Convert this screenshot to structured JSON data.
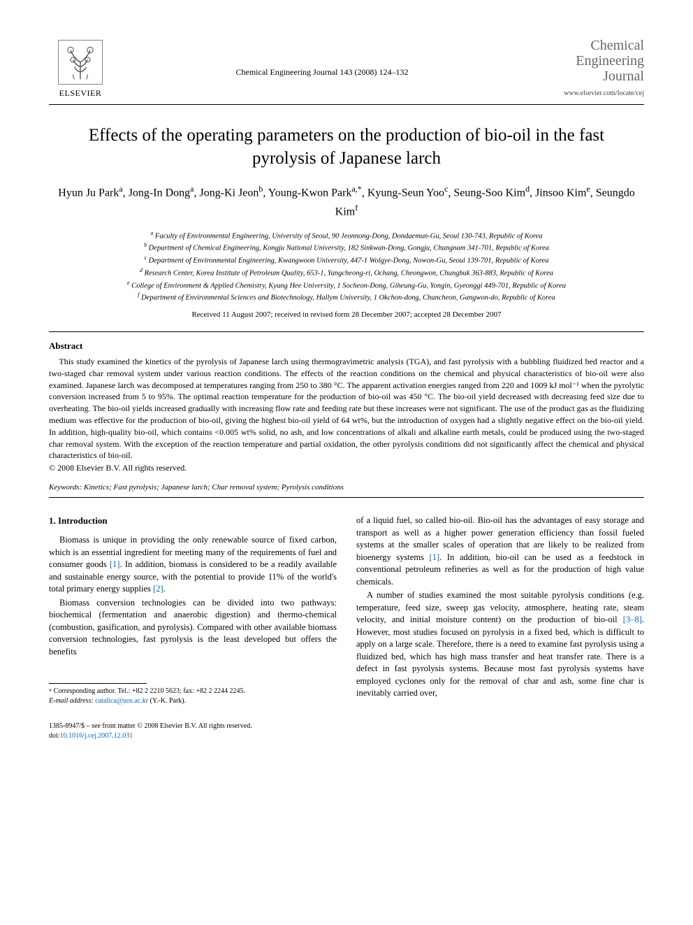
{
  "header": {
    "publisher_name": "ELSEVIER",
    "journal_ref": "Chemical Engineering Journal 143 (2008) 124–132",
    "journal_brand_line1": "Chemical",
    "journal_brand_line2": "Engineering",
    "journal_brand_line3": "Journal",
    "journal_url": "www.elsevier.com/locate/cej"
  },
  "title": "Effects of the operating parameters on the production of bio-oil in the fast pyrolysis of Japanese larch",
  "authors_html": "Hyun Ju Park<sup>a</sup>, Jong-In Dong<sup>a</sup>, Jong-Ki Jeon<sup>b</sup>, Young-Kwon Park<sup>a,*</sup>, Kyung-Seun Yoo<sup>c</sup>, Seung-Soo Kim<sup>d</sup>, Jinsoo Kim<sup>e</sup>, Seungdo Kim<sup>f</sup>",
  "affiliations": {
    "a": "Faculty of Environmental Engineering, University of Seoul, 90 Jeonnong-Dong, Dondaemun-Gu, Seoul 130-743, Republic of Korea",
    "b": "Department of Chemical Engineering, Kongju National University, 182 Sinkwan-Dong, Gongju, Chungnam 341-701, Republic of Korea",
    "c": "Department of Environmental Engineering, Kwangwoon University, 447-1 Wolgye-Dong, Nowon-Gu, Seoul 139-701, Republic of Korea",
    "d": "Research Center, Korea Institute of Petroleum Quality, 653-1, Yangcheong-ri, Ochang, Cheongwon, Chungbuk 363-883, Republic of Korea",
    "e": "College of Environment & Applied Chemistry, Kyung Hee University, 1 Socheon-Dong, Giheung-Gu, Yongin, Gyeonggi 449-701, Republic of Korea",
    "f": "Department of Environmental Sciences and Biotechnology, Hallym University, 1 Okchon-dong, Chuncheon, Gangwon-do, Republic of Korea"
  },
  "dates": "Received 11 August 2007; received in revised form 28 December 2007; accepted 28 December 2007",
  "abstract": {
    "heading": "Abstract",
    "body": "This study examined the kinetics of the pyrolysis of Japanese larch using thermogravimetric analysis (TGA), and fast pyrolysis with a bubbling fluidized bed reactor and a two-staged char removal system under various reaction conditions. The effects of the reaction conditions on the chemical and physical characteristics of bio-oil were also examined. Japanese larch was decomposed at temperatures ranging from 250 to 380 °C. The apparent activation energies ranged from 220 and 1009 kJ mol⁻¹ when the pyrolytic conversion increased from 5 to 95%. The optimal reaction temperature for the production of bio-oil was 450 °C. The bio-oil yield decreased with decreasing feed size due to overheating. The bio-oil yields increased gradually with increasing flow rate and feeding rate but these increases were not significant. The use of the product gas as the fluidizing medium was effective for the production of bio-oil, giving the highest bio-oil yield of 64 wt%, but the introduction of oxygen had a slightly negative effect on the bio-oil yield. In addition, high-quality bio-oil, which contains <0.005 wt% solid, no ash, and low concentrations of alkali and alkaline earth metals, could be produced using the two-staged char removal system. With the exception of the reaction temperature and partial oxidation, the other pyrolysis conditions did not significantly affect the chemical and physical characteristics of bio-oil.",
    "copyright": "© 2008 Elsevier B.V. All rights reserved."
  },
  "keywords": {
    "label": "Keywords:",
    "text": "Kinetics; Fast pyrolysis; Japanese larch; Char removal system; Pyrolysis conditions"
  },
  "intro": {
    "heading": "1. Introduction",
    "left_p1_a": "Biomass is unique in providing the only renewable source of fixed carbon, which is an essential ingredient for meeting many of the requirements of fuel and consumer goods ",
    "ref1": "[1]",
    "left_p1_b": ". In addition, biomass is considered to be a readily available and sustainable energy source, with the potential to provide 11% of the world's total primary energy supplies ",
    "ref2": "[2]",
    "left_p1_c": ".",
    "left_p2": "Biomass conversion technologies can be divided into two pathways: biochemical (fermentation and anaerobic digestion) and thermo-chemical (combustion, gasification, and pyrolysis). Compared with other available biomass conversion technologies, fast pyrolysis is the least developed but offers the benefits",
    "right_p1_a": "of a liquid fuel, so called bio-oil. Bio-oil has the advantages of easy storage and transport as well as a higher power generation efficiency than fossil fueled systems at the smaller scales of operation that are likely to be realized from bioenergy systems ",
    "ref1b": "[1]",
    "right_p1_b": ". In addition, bio-oil can be used as a feedstock in conventional petroleum refineries as well as for the production of high value chemicals.",
    "right_p2_a": "A number of studies examined the most suitable pyrolysis conditions (e.g. temperature, feed size, sweep gas velocity, atmosphere, heating rate, steam velocity, and initial moisture content) on the production of bio-oil ",
    "ref38": "[3–8]",
    "right_p2_b": ". However, most studies focused on pyrolysis in a fixed bed, which is difficult to apply on a large scale. Therefore, there is a need to examine fast pyrolysis using a fluidized bed, which has high mass transfer and heat transfer rate. There is a defect in fast pyrolysis systems. Because most fast pyrolysis systems have employed cyclones only for the removal of char and ash, some fine char is inevitably carried over,"
  },
  "footnote": {
    "corr": "Corresponding author. Tel.: +82 2 2210 5623; fax: +82 2 2244 2245.",
    "email_label": "E-mail address:",
    "email": "catalica@uos.ac.kr",
    "email_tail": "(Y.-K. Park)."
  },
  "bottom": {
    "issn_line": "1385-8947/$ – see front matter © 2008 Elsevier B.V. All rights reserved.",
    "doi_label": "doi:",
    "doi": "10.1016/j.cej.2007.12.031"
  },
  "colors": {
    "link": "#0066cc",
    "brand_grey": "#666666",
    "text": "#000000",
    "background": "#ffffff"
  }
}
